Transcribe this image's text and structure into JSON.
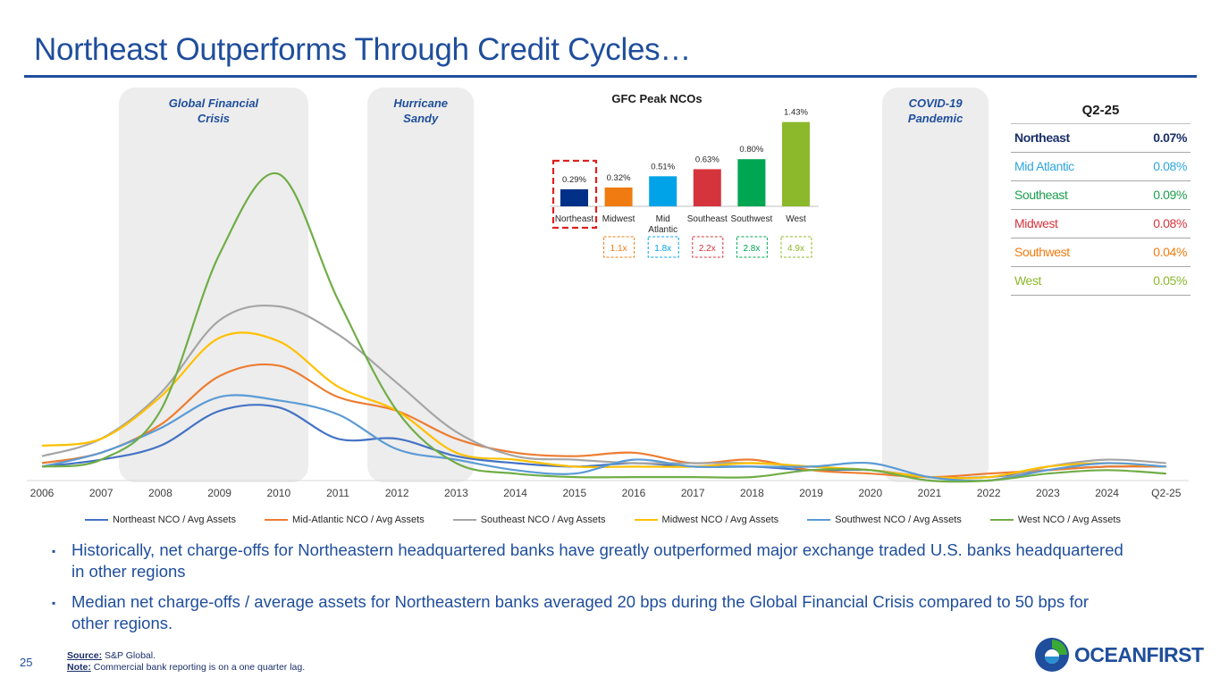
{
  "title": "Northeast Outperforms Through Credit Cycles…",
  "colors": {
    "brand_blue": "#1f4e9c",
    "shade": "#ededed",
    "dashed_red": "#e02020"
  },
  "events": [
    {
      "label_line1": "Global Financial",
      "label_line2": "Crisis",
      "from": 2007.3,
      "to": 2010.5
    },
    {
      "label_line1": "Hurricane",
      "label_line2": "Sandy",
      "from": 2011.5,
      "to": 2013.3
    },
    {
      "label_line1": "COVID-19",
      "label_line2": "Pandemic",
      "from": 2020.2,
      "to": 2022.0
    }
  ],
  "chart_data": {
    "type": "line",
    "x_labels": [
      "2006",
      "2007",
      "2008",
      "2009",
      "2010",
      "2011",
      "2012",
      "2013",
      "2014",
      "2015",
      "2016",
      "2017",
      "2018",
      "2019",
      "2020",
      "2021",
      "2022",
      "2023",
      "2024",
      "Q2-25"
    ],
    "x": [
      0,
      1,
      2,
      3,
      4,
      5,
      6,
      7,
      8,
      9,
      10,
      11,
      12,
      13,
      14,
      15,
      16,
      17,
      18,
      19
    ],
    "ylim": [
      0,
      100
    ],
    "ylabel": "",
    "series": [
      {
        "name": "Northeast NCO / Avg Assets",
        "color": "#4472c4",
        "values": [
          4,
          6,
          10,
          20,
          21,
          12,
          12,
          7,
          5,
          4,
          5,
          4,
          4,
          3,
          3,
          1,
          1,
          3,
          4,
          4
        ]
      },
      {
        "name": "Mid-Atlantic NCO / Avg Assets",
        "color": "#ed7d31",
        "values": [
          5,
          8,
          16,
          30,
          33,
          24,
          20,
          12,
          8,
          7,
          8,
          5,
          6,
          3,
          2,
          1,
          2,
          3,
          4,
          4
        ]
      },
      {
        "name": "Southeast NCO / Avg Assets",
        "color": "#a5a5a5",
        "values": [
          7,
          12,
          25,
          46,
          50,
          42,
          28,
          14,
          7,
          6,
          5,
          5,
          5,
          4,
          3,
          1,
          0,
          4,
          6,
          5
        ]
      },
      {
        "name": "Midwest NCO / Avg Assets",
        "color": "#ffc000",
        "values": [
          10,
          12,
          24,
          41,
          40,
          27,
          20,
          8,
          6,
          4,
          4,
          4,
          5,
          4,
          3,
          1,
          1,
          4,
          5,
          4
        ]
      },
      {
        "name": "Southwest NCO / Avg Assets",
        "color": "#5b9bd5",
        "values": [
          4,
          8,
          15,
          24,
          23,
          19,
          9,
          6,
          3,
          2,
          6,
          4,
          4,
          4,
          5,
          1,
          0,
          3,
          5,
          4
        ]
      },
      {
        "name": "West NCO / Avg Assets",
        "color": "#70ad47",
        "values": [
          4,
          6,
          20,
          65,
          88,
          52,
          20,
          5,
          2,
          1,
          1,
          1,
          1,
          3,
          3,
          0,
          0,
          2,
          3,
          2
        ]
      }
    ]
  },
  "inset": {
    "title": "GFC Peak NCOs",
    "bars": [
      {
        "label": "Northeast",
        "value_label": "0.29%",
        "value": 0.29,
        "color": "#003087",
        "multiple": ""
      },
      {
        "label": "Midwest",
        "value_label": "0.32%",
        "value": 0.32,
        "color": "#f07b11",
        "multiple": "1.1x",
        "multiple_color": "#f07b11"
      },
      {
        "label": "Mid",
        "label2": "Atlantic",
        "value_label": "0.51%",
        "value": 0.51,
        "color": "#00a3e8",
        "multiple": "1.8x",
        "multiple_color": "#00a3e8"
      },
      {
        "label": "Southeast",
        "value_label": "0.63%",
        "value": 0.63,
        "color": "#d6343c",
        "multiple": "2.2x",
        "multiple_color": "#d6343c"
      },
      {
        "label": "Southwest",
        "value_label": "0.80%",
        "value": 0.8,
        "color": "#00a651",
        "multiple": "2.8x",
        "multiple_color": "#00a651"
      },
      {
        "label": "West",
        "value_label": "1.43%",
        "value": 1.43,
        "color": "#8cb82b",
        "multiple": "4.9x",
        "multiple_color": "#8cb82b"
      }
    ]
  },
  "q_table": {
    "header": "Q2-25",
    "rows": [
      {
        "region": "Northeast",
        "value": "0.07%",
        "color": "#1a2f6a"
      },
      {
        "region": "Mid Atlantic",
        "value": "0.08%",
        "color": "#2fa6de"
      },
      {
        "region": "Southeast",
        "value": "0.09%",
        "color": "#1d9e4d"
      },
      {
        "region": "Midwest",
        "value": "0.08%",
        "color": "#d6343c"
      },
      {
        "region": "Southwest",
        "value": "0.04%",
        "color": "#f07b11"
      },
      {
        "region": "West",
        "value": "0.05%",
        "color": "#8cb82b"
      }
    ]
  },
  "bullets": [
    "Historically, net charge-offs for Northeastern headquartered banks have greatly outperformed major exchange traded U.S. banks headquartered in other regions",
    "Median net charge-offs / average assets for Northeastern banks averaged 20 bps during the Global Financial Crisis compared to 50 bps for other regions."
  ],
  "bullet_glyph": "▪",
  "page_number": "25",
  "footnote": {
    "source_label": "Source:",
    "source_text": " S&P Global.",
    "note_label": "Note:",
    "note_text": " Commercial bank reporting is on a one quarter lag."
  },
  "logo_text": "OCEANFIRST"
}
